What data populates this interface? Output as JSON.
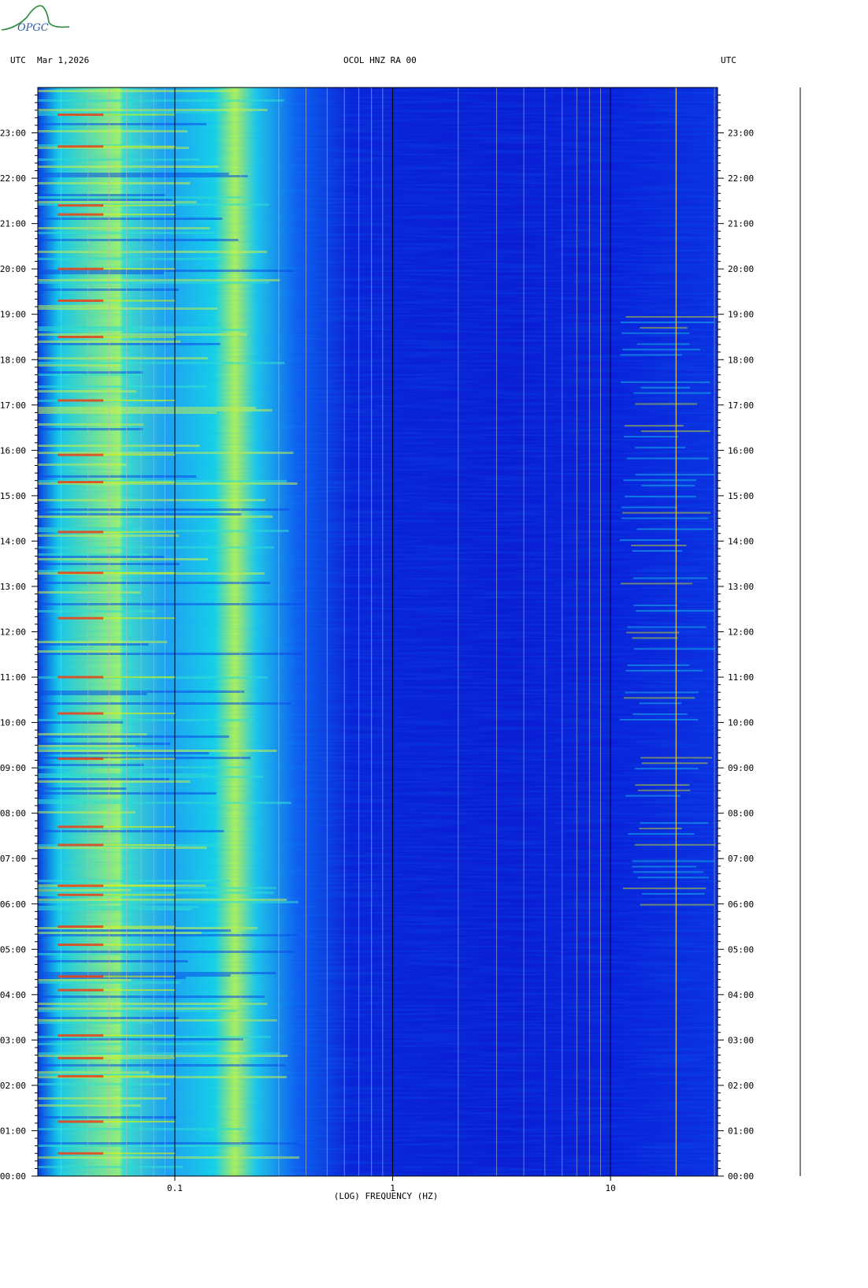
{
  "header": {
    "left_tz": "UTC",
    "date": "Mar 1,2026",
    "station": "OCOL HNZ RA 00",
    "right_tz": "UTC"
  },
  "logo": {
    "text": "OPGC"
  },
  "colors": {
    "low": "#0a1ad8",
    "mid": "#18d4e8",
    "high": "#e0f000",
    "peak": "#f04010"
  },
  "chart_data": {
    "type": "heatmap",
    "title": "OCOL HNZ RA 00",
    "xlabel": "(LOG) FREQUENCY (HZ)",
    "ylabel": "",
    "x_scale": "log",
    "xlim": [
      0.0235,
      31
    ],
    "x_ticks": [
      {
        "value": 0.1,
        "label": "0.1"
      },
      {
        "value": 1,
        "label": "1"
      },
      {
        "value": 10,
        "label": "10"
      }
    ],
    "ylim_hours": [
      0,
      24
    ],
    "y_ticks_left": [
      "00:00",
      "01:00",
      "02:00",
      "03:00",
      "04:00",
      "05:00",
      "06:00",
      "07:00",
      "08:00",
      "09:00",
      "10:00",
      "11:00",
      "12:00",
      "13:00",
      "14:00",
      "15:00",
      "16:00",
      "17:00",
      "18:00",
      "19:00",
      "20:00",
      "21:00",
      "22:00",
      "23:00"
    ],
    "y_ticks_right": [
      "00:00",
      "01:00",
      "02:00",
      "03:00",
      "04:00",
      "05:00",
      "06:00",
      "07:00",
      "08:00",
      "09:00",
      "10:00",
      "11:00",
      "12:00",
      "13:00",
      "14:00",
      "15:00",
      "16:00",
      "17:00",
      "18:00",
      "19:00",
      "20:00",
      "21:00",
      "22:00",
      "23:00"
    ],
    "high_energy_hours": [
      0.5,
      1.2,
      2.2,
      2.6,
      3.1,
      4.1,
      4.4,
      5.1,
      5.5,
      6.2,
      6.4,
      7.3,
      7.7,
      9.2,
      10.2,
      11.0,
      12.3,
      13.3,
      14.2,
      15.3,
      15.9,
      17.1,
      18.5,
      19.3,
      20.0,
      21.2,
      21.4,
      22.7,
      23.4
    ],
    "activity_window_hours": [
      6.0,
      19.2
    ]
  }
}
